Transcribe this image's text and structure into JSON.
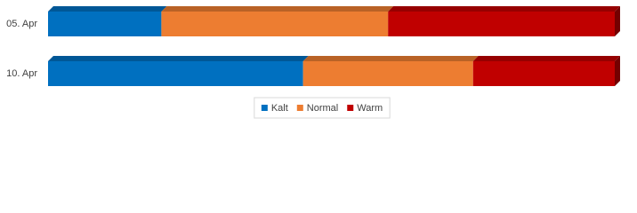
{
  "chart_data": {
    "type": "bar",
    "orientation": "horizontal",
    "stacking": "percent",
    "legend": "bottom",
    "categories": [
      "05. Apr",
      "10. Apr"
    ],
    "series": [
      {
        "name": "Kalt",
        "color": "#0070c0",
        "values": [
          20,
          45
        ]
      },
      {
        "name": "Normal",
        "color": "#ed7d31",
        "values": [
          40,
          30
        ]
      },
      {
        "name": "Warm",
        "color": "#c00000",
        "values": [
          40,
          25
        ]
      }
    ]
  }
}
